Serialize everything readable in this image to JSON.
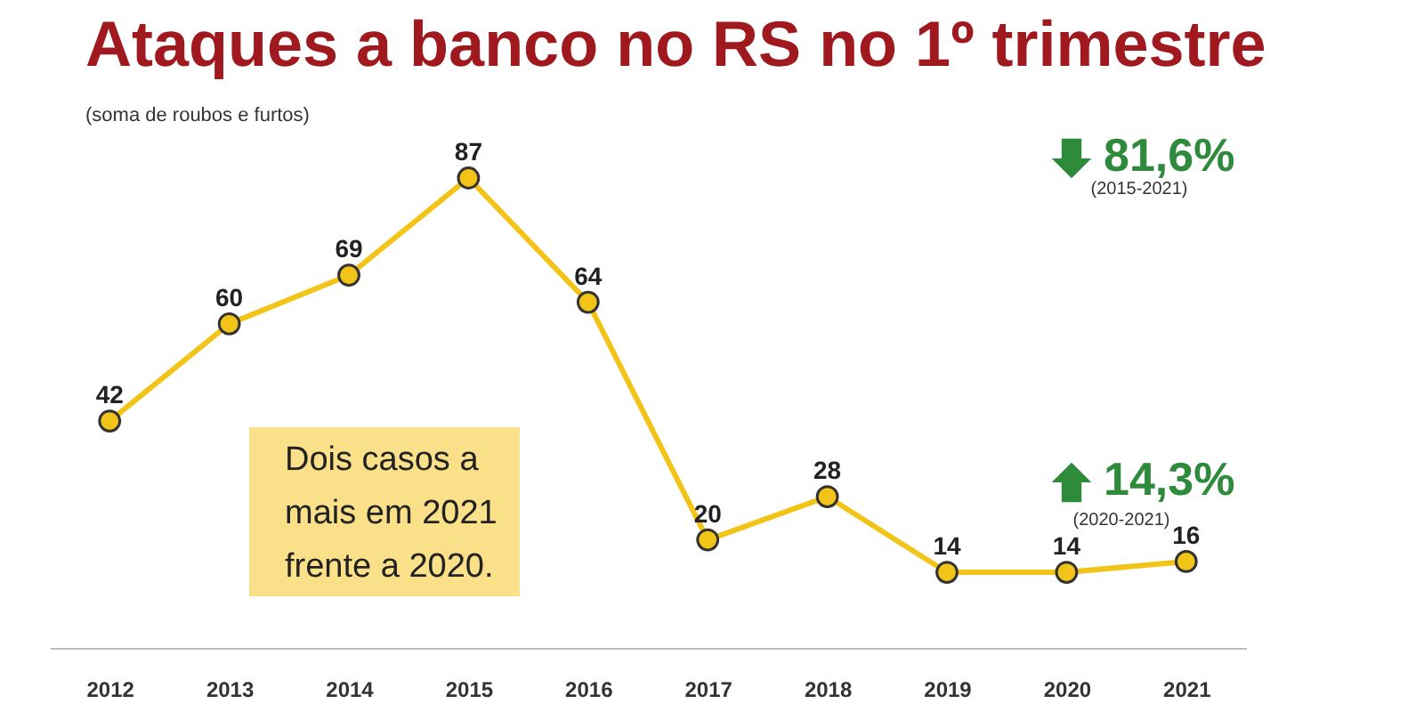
{
  "chart_data": {
    "type": "line",
    "title": "Ataques a banco no RS no 1º trimestre",
    "subtitle": "(soma de roubos e furtos)",
    "categories": [
      "2012",
      "2013",
      "2014",
      "2015",
      "2016",
      "2017",
      "2018",
      "2019",
      "2020",
      "2021"
    ],
    "values": [
      42,
      60,
      69,
      87,
      64,
      20,
      28,
      14,
      14,
      16
    ],
    "color": "#f2c417",
    "marker": "circle",
    "data_labels": true,
    "grid": false,
    "annotations": [
      "81,6%",
      "(2015-2021)",
      "14,3%",
      "(2020-2021)",
      "Dois casos a\nmais em 2021\nfrente a 2020."
    ]
  }
}
